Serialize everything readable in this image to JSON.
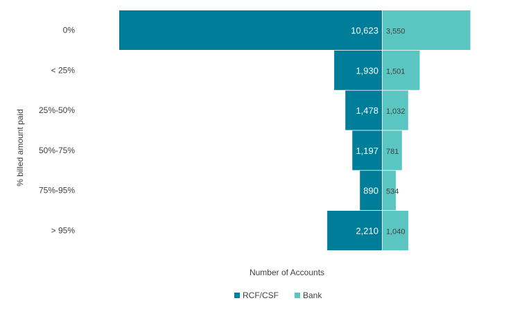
{
  "chart_data": {
    "type": "bar",
    "orientation": "horizontal-diverging",
    "categories": [
      "0%",
      "< 25%",
      "25%-50%",
      "50%-75%",
      "75%-95%",
      "> 95%"
    ],
    "series": [
      {
        "name": "RCF/CSF",
        "color": "#007E99",
        "values": [
          10623,
          1930,
          1478,
          1197,
          890,
          2210
        ],
        "labels": [
          "10,623",
          "1,930",
          "1,478",
          "1,197",
          "890",
          "2,210"
        ]
      },
      {
        "name": "Bank",
        "color": "#5BC6C1",
        "values": [
          3550,
          1501,
          1032,
          781,
          534,
          1040
        ],
        "labels": [
          "3,550",
          "1,501",
          "1,032",
          "781",
          "534",
          "1,040"
        ]
      }
    ],
    "xlabel": "Number of Accounts",
    "ylabel": "% billed amount paid",
    "legend_position": "bottom",
    "grid": false
  }
}
